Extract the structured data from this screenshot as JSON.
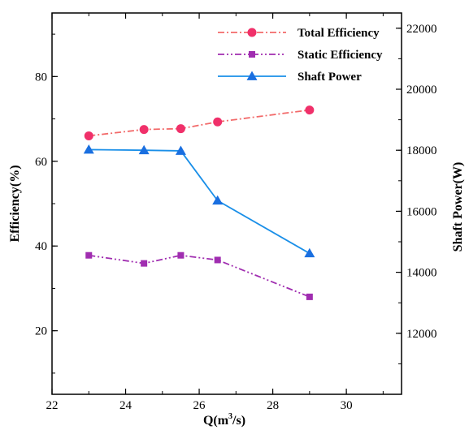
{
  "chart_data": {
    "type": "line",
    "x": [
      23,
      24.5,
      25.5,
      26.5,
      29
    ],
    "xlabel_base": "Q(m",
    "xlabel_sup": "3",
    "xlabel_tail": "/s)",
    "ylabel": "Efficiency(%)",
    "y2label": "Shaft Power(W)",
    "xlim": [
      22,
      31.5
    ],
    "ylim": [
      5,
      95
    ],
    "y2lim": [
      10000,
      22500
    ],
    "xticks": [
      22,
      24,
      26,
      28,
      30
    ],
    "yticks": [
      20,
      40,
      60,
      80
    ],
    "y2ticks": [
      12000,
      14000,
      16000,
      18000,
      20000,
      22000
    ],
    "series": [
      {
        "name": "Total Efficiency",
        "axis": "left",
        "values": [
          66,
          67.5,
          67.7,
          69.3,
          72.1
        ],
        "color": "#f0306a",
        "line_color": "#f26a6a",
        "marker": "circle",
        "dash": "8,3,2,3"
      },
      {
        "name": "Static Efficiency",
        "axis": "left",
        "values": [
          37.8,
          35.9,
          37.8,
          36.7,
          28
        ],
        "color": "#a02db0",
        "line_color": "#a02db0",
        "marker": "square",
        "dash": "8,3,2,3,2,3"
      },
      {
        "name": "Shaft Power",
        "axis": "right",
        "values": [
          18020,
          18000,
          17980,
          16350,
          14620
        ],
        "color": "#1a6fe0",
        "line_color": "#1a8fe8",
        "marker": "triangle",
        "dash": ""
      }
    ],
    "legend_position": "top-right"
  }
}
